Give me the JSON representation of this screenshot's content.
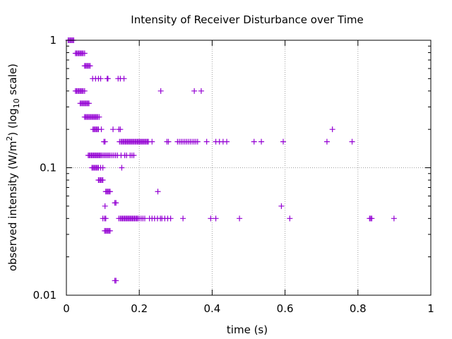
{
  "chart_data": {
    "type": "scatter",
    "title": "Intensity of Receiver Disturbance over Time",
    "xlabel": "time (s)",
    "ylabel": {
      "prefix": "observed intensity (W/m",
      "sup": "2",
      "middle": ") (log",
      "sub": "10",
      "suffix": " scale)"
    },
    "xlim": [
      0,
      1
    ],
    "ylim": [
      0.01,
      1
    ],
    "yscale": "log",
    "grid": true,
    "legend": "none",
    "color": "#9400d3",
    "xticks": [
      {
        "v": 0,
        "label": "0"
      },
      {
        "v": 0.2,
        "label": "0.2"
      },
      {
        "v": 0.4,
        "label": "0.4"
      },
      {
        "v": 0.6,
        "label": "0.6"
      },
      {
        "v": 0.8,
        "label": "0.8"
      },
      {
        "v": 1,
        "label": "1"
      }
    ],
    "yticks": [
      {
        "v": 1,
        "label": "1"
      },
      {
        "v": 0.1,
        "label": "0.1"
      },
      {
        "v": 0.01,
        "label": "0.01"
      }
    ],
    "series": [
      {
        "rows": [
          {
            "y": 1.0,
            "x": [
              0.005,
              0.008,
              0.011,
              0.014,
              0.017,
              0.02
            ]
          },
          {
            "y": 0.79,
            "x": [
              0.025,
              0.028,
              0.031,
              0.034,
              0.037,
              0.04,
              0.043,
              0.046,
              0.05
            ]
          },
          {
            "y": 0.63,
            "x": [
              0.05,
              0.053,
              0.056,
              0.059,
              0.062,
              0.065
            ]
          },
          {
            "y": 0.5,
            "x": [
              0.072,
              0.08,
              0.088,
              0.094,
              0.112,
              0.114,
              0.142,
              0.148,
              0.158
            ]
          },
          {
            "y": 0.4,
            "x": [
              0.025,
              0.028,
              0.031,
              0.034,
              0.037,
              0.04,
              0.043,
              0.046,
              0.05,
              0.259,
              0.351,
              0.37
            ]
          },
          {
            "y": 0.32,
            "x": [
              0.038,
              0.041,
              0.044,
              0.047,
              0.05,
              0.053,
              0.056,
              0.059,
              0.062
            ]
          },
          {
            "y": 0.25,
            "x": [
              0.05,
              0.053,
              0.056,
              0.059,
              0.062,
              0.065,
              0.068,
              0.071,
              0.074,
              0.077,
              0.08,
              0.083,
              0.086,
              0.09
            ]
          },
          {
            "y": 0.2,
            "x": [
              0.073,
              0.076,
              0.079,
              0.082,
              0.085,
              0.088,
              0.096,
              0.128,
              0.144,
              0.148,
              0.73
            ]
          },
          {
            "y": 0.16,
            "x": [
              0.103,
              0.106,
              0.146,
              0.15,
              0.153,
              0.156,
              0.159,
              0.162,
              0.165,
              0.168,
              0.171,
              0.174,
              0.177,
              0.18,
              0.183,
              0.186,
              0.189,
              0.192,
              0.195,
              0.198,
              0.201,
              0.204,
              0.207,
              0.21,
              0.213,
              0.216,
              0.219,
              0.222,
              0.225,
              0.235,
              0.276,
              0.28,
              0.305,
              0.31,
              0.315,
              0.32,
              0.325,
              0.33,
              0.335,
              0.34,
              0.345,
              0.35,
              0.355,
              0.36,
              0.385,
              0.41,
              0.42,
              0.43,
              0.44,
              0.515,
              0.535,
              0.595,
              0.715,
              0.784
            ]
          },
          {
            "y": 0.125,
            "x": [
              0.06,
              0.063,
              0.066,
              0.069,
              0.072,
              0.075,
              0.078,
              0.081,
              0.084,
              0.087,
              0.09,
              0.093,
              0.096,
              0.1,
              0.104,
              0.108,
              0.112,
              0.116,
              0.12,
              0.125,
              0.13,
              0.135,
              0.14,
              0.15,
              0.16,
              0.165,
              0.175,
              0.18,
              0.185
            ]
          },
          {
            "y": 0.1,
            "x": [
              0.07,
              0.073,
              0.076,
              0.079,
              0.082,
              0.085,
              0.088,
              0.094,
              0.1,
              0.152
            ]
          },
          {
            "y": 0.08,
            "x": [
              0.088,
              0.091,
              0.094,
              0.097,
              0.1
            ]
          },
          {
            "y": 0.065,
            "x": [
              0.108,
              0.111,
              0.114,
              0.117,
              0.12,
              0.251
            ]
          },
          {
            "y": 0.053,
            "x": [
              0.133,
              0.136
            ]
          },
          {
            "y": 0.05,
            "x": [
              0.106,
              0.59
            ]
          },
          {
            "y": 0.04,
            "x": [
              0.1,
              0.105,
              0.108,
              0.144,
              0.148,
              0.151,
              0.154,
              0.157,
              0.16,
              0.163,
              0.166,
              0.169,
              0.172,
              0.175,
              0.178,
              0.181,
              0.184,
              0.187,
              0.19,
              0.193,
              0.196,
              0.2,
              0.205,
              0.21,
              0.215,
              0.228,
              0.235,
              0.242,
              0.25,
              0.258,
              0.262,
              0.27,
              0.278,
              0.286,
              0.32,
              0.396,
              0.41,
              0.475,
              0.613,
              0.832,
              0.835,
              0.838,
              0.899
            ]
          },
          {
            "y": 0.032,
            "x": [
              0.105,
              0.108,
              0.111,
              0.114,
              0.117,
              0.12
            ]
          },
          {
            "y": 0.013,
            "x": [
              0.133,
              0.136
            ]
          }
        ]
      }
    ]
  }
}
